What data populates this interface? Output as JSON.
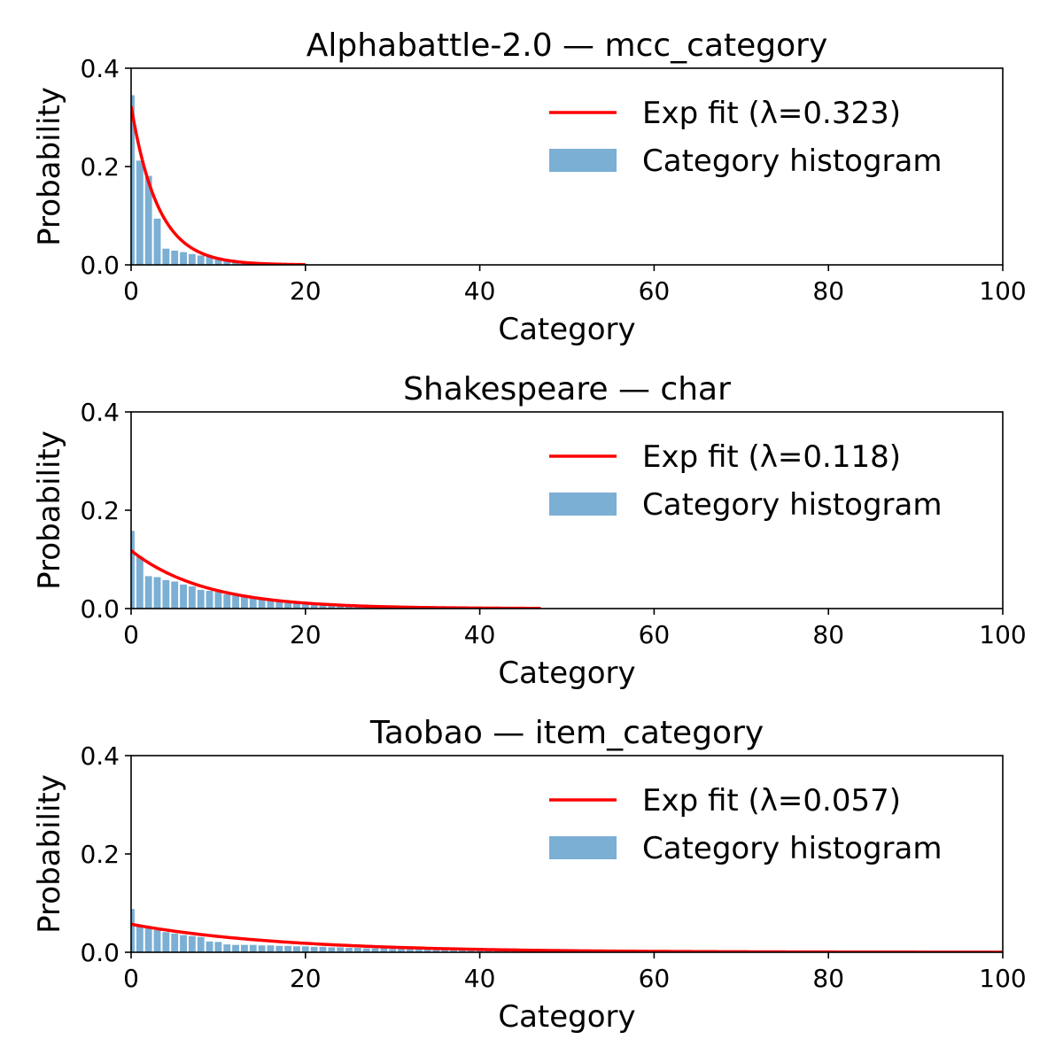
{
  "chart_data": [
    {
      "type": "bar",
      "title": "Alphabattle-2.0 — mcc_category",
      "xlabel": "Category",
      "ylabel": "Probability",
      "xlim": [
        0,
        100
      ],
      "ylim": [
        0,
        0.4
      ],
      "xticks": [
        "0",
        "20",
        "40",
        "60",
        "80",
        "100"
      ],
      "yticks": [
        "0.0",
        "0.2",
        "0.4"
      ],
      "grid": false,
      "legend_position": "top-right",
      "series": [
        {
          "name": "Category histogram",
          "kind": "bar",
          "color": "#7bafd4",
          "x": [
            0,
            1,
            2,
            3,
            4,
            5,
            6,
            7,
            8,
            9,
            10,
            11,
            12,
            13,
            14,
            15,
            16,
            17,
            18,
            19,
            20
          ],
          "values": [
            0.345,
            0.212,
            0.181,
            0.094,
            0.033,
            0.029,
            0.026,
            0.022,
            0.019,
            0.016,
            0.013,
            0.011,
            0.009,
            0.007,
            0.006,
            0.005,
            0.004,
            0.003,
            0.003,
            0.002,
            0.002
          ]
        },
        {
          "name": "Exp fit (λ=0.323)",
          "kind": "exp_fit",
          "color": "#ff0000",
          "lambda": 0.323,
          "x_range": [
            0,
            20
          ]
        }
      ]
    },
    {
      "type": "bar",
      "title": "Shakespeare — char",
      "xlabel": "Category",
      "ylabel": "Probability",
      "xlim": [
        0,
        100
      ],
      "ylim": [
        0,
        0.4
      ],
      "xticks": [
        "0",
        "20",
        "40",
        "60",
        "80",
        "100"
      ],
      "yticks": [
        "0.0",
        "0.2",
        "0.4"
      ],
      "grid": false,
      "legend_position": "top-right",
      "series": [
        {
          "name": "Category histogram",
          "kind": "bar",
          "color": "#7bafd4",
          "x": [
            0,
            1,
            2,
            3,
            4,
            5,
            6,
            7,
            8,
            9,
            10,
            11,
            12,
            13,
            14,
            15,
            16,
            17,
            18,
            19,
            20,
            21,
            22,
            23,
            24,
            25,
            26,
            27,
            28,
            29,
            30,
            31,
            32,
            33,
            34,
            35,
            36,
            37,
            38,
            39,
            40,
            41,
            42,
            43,
            44,
            45,
            46,
            47
          ],
          "values": [
            0.158,
            0.105,
            0.066,
            0.064,
            0.058,
            0.055,
            0.049,
            0.045,
            0.038,
            0.036,
            0.034,
            0.029,
            0.026,
            0.024,
            0.021,
            0.019,
            0.017,
            0.016,
            0.014,
            0.013,
            0.012,
            0.01,
            0.009,
            0.008,
            0.007,
            0.006,
            0.006,
            0.005,
            0.004,
            0.004,
            0.003,
            0.003,
            0.003,
            0.002,
            0.002,
            0.002,
            0.002,
            0.001,
            0.001,
            0.001,
            0.001,
            0.001,
            0.001,
            0.001,
            0.001,
            0.001,
            0.001,
            0.001
          ]
        },
        {
          "name": "Exp fit (λ=0.118)",
          "kind": "exp_fit",
          "color": "#ff0000",
          "lambda": 0.118,
          "x_range": [
            0,
            47
          ]
        }
      ]
    },
    {
      "type": "bar",
      "title": "Taobao — item_category",
      "xlabel": "Category",
      "ylabel": "Probability",
      "xlim": [
        0,
        100
      ],
      "ylim": [
        0,
        0.4
      ],
      "xticks": [
        "0",
        "20",
        "40",
        "60",
        "80",
        "100"
      ],
      "yticks": [
        "0.0",
        "0.2",
        "0.4"
      ],
      "grid": false,
      "legend_position": "top-right",
      "series": [
        {
          "name": "Category histogram",
          "kind": "bar",
          "color": "#7bafd4",
          "x": [
            0,
            1,
            2,
            3,
            4,
            5,
            6,
            7,
            8,
            9,
            10,
            11,
            12,
            13,
            14,
            15,
            16,
            17,
            18,
            19,
            20,
            21,
            22,
            23,
            24,
            25,
            26,
            27,
            28,
            29,
            30,
            31,
            32,
            33,
            34,
            35,
            36,
            37,
            38,
            39,
            40,
            41,
            42,
            43,
            44,
            45,
            46,
            47,
            48,
            49,
            50,
            51,
            52,
            53,
            54,
            55,
            56,
            57,
            58,
            59,
            60,
            61,
            62,
            63,
            64,
            65,
            66,
            67,
            68,
            69,
            70,
            71,
            72,
            73,
            74,
            75,
            76,
            77,
            78,
            79,
            80,
            81,
            82,
            83,
            84,
            85,
            86,
            87,
            88,
            89,
            90,
            91,
            92,
            93,
            94,
            95,
            96,
            97,
            98,
            99
          ],
          "values": [
            0.088,
            0.055,
            0.049,
            0.045,
            0.041,
            0.038,
            0.035,
            0.033,
            0.031,
            0.022,
            0.021,
            0.016,
            0.015,
            0.015,
            0.015,
            0.014,
            0.014,
            0.013,
            0.013,
            0.012,
            0.012,
            0.011,
            0.011,
            0.01,
            0.01,
            0.009,
            0.009,
            0.008,
            0.008,
            0.008,
            0.007,
            0.007,
            0.007,
            0.006,
            0.006,
            0.006,
            0.005,
            0.005,
            0.005,
            0.005,
            0.004,
            0.004,
            0.004,
            0.004,
            0.003,
            0.003,
            0.003,
            0.003,
            0.003,
            0.003,
            0.002,
            0.002,
            0.002,
            0.002,
            0.002,
            0.002,
            0.002,
            0.002,
            0.002,
            0.002,
            0.001,
            0.001,
            0.001,
            0.001,
            0.001,
            0.001,
            0.001,
            0.001,
            0.001,
            0.001,
            0.001,
            0.001,
            0.001,
            0.001,
            0.001,
            0.001,
            0.001,
            0.001,
            0.001,
            0.001,
            0.001,
            0.001,
            0.001,
            0.001,
            0.001,
            0.001,
            0.001,
            0.001,
            0.001,
            0.001,
            0.001,
            0.001,
            0.001,
            0.001,
            0.001,
            0.001,
            0.001,
            0.001,
            0.001,
            0.001
          ]
        },
        {
          "name": "Exp fit (λ=0.057)",
          "kind": "exp_fit",
          "color": "#ff0000",
          "lambda": 0.057,
          "x_range": [
            0,
            100
          ]
        }
      ]
    }
  ]
}
